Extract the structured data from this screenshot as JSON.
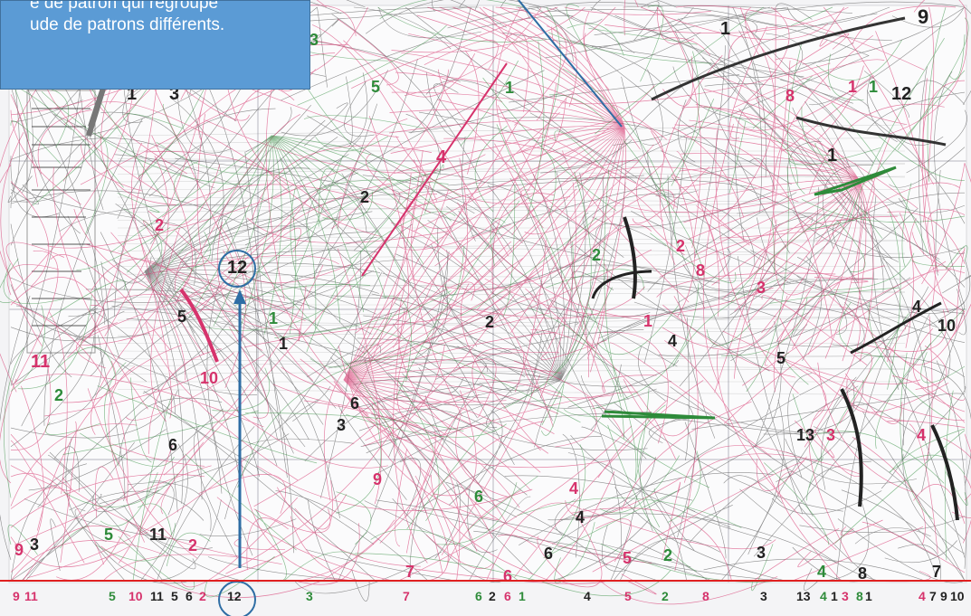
{
  "callout": {
    "line1": "e de patron qui regroupe",
    "line2": "ude de patrons différents."
  },
  "colors": {
    "pink": "#d6336c",
    "green": "#2e8b3a",
    "black": "#222222",
    "blue_annotation": "#2e6da4",
    "red_line": "#e02020",
    "callout_bg": "#5b9bd5"
  },
  "sheet_numbers": [
    {
      "id": "n1",
      "text": "9",
      "color": "black"
    },
    {
      "id": "n2",
      "text": "1",
      "color": "black"
    },
    {
      "id": "n3",
      "text": "3",
      "color": "green"
    },
    {
      "id": "n4",
      "text": "5",
      "color": "green"
    },
    {
      "id": "n5",
      "text": "1",
      "color": "green"
    },
    {
      "id": "n6",
      "text": "1",
      "color": "black"
    },
    {
      "id": "n7",
      "text": "3",
      "color": "black"
    },
    {
      "id": "n8",
      "text": "8",
      "color": "pink"
    },
    {
      "id": "n9",
      "text": "1",
      "color": "pink"
    },
    {
      "id": "n10",
      "text": "1",
      "color": "green"
    },
    {
      "id": "n11",
      "text": "12",
      "color": "black"
    },
    {
      "id": "n12",
      "text": "4",
      "color": "pink"
    },
    {
      "id": "n13",
      "text": "1",
      "color": "black"
    },
    {
      "id": "n14",
      "text": "2",
      "color": "black"
    },
    {
      "id": "n15",
      "text": "2",
      "color": "pink"
    },
    {
      "id": "n16",
      "text": "12",
      "color": "black"
    },
    {
      "id": "n17",
      "text": "2",
      "color": "green"
    },
    {
      "id": "n18",
      "text": "2",
      "color": "pink"
    },
    {
      "id": "n19",
      "text": "8",
      "color": "pink"
    },
    {
      "id": "n20",
      "text": "3",
      "color": "pink"
    },
    {
      "id": "n21",
      "text": "4",
      "color": "black"
    },
    {
      "id": "n22",
      "text": "10",
      "color": "black"
    },
    {
      "id": "n23",
      "text": "5",
      "color": "black"
    },
    {
      "id": "n24",
      "text": "1",
      "color": "green"
    },
    {
      "id": "n25",
      "text": "2",
      "color": "black"
    },
    {
      "id": "n26",
      "text": "1",
      "color": "pink"
    },
    {
      "id": "n27",
      "text": "4",
      "color": "black"
    },
    {
      "id": "n28",
      "text": "1",
      "color": "black"
    },
    {
      "id": "n29",
      "text": "5",
      "color": "black"
    },
    {
      "id": "n30",
      "text": "11",
      "color": "pink"
    },
    {
      "id": "n31",
      "text": "10",
      "color": "pink"
    },
    {
      "id": "n32",
      "text": "2",
      "color": "green"
    },
    {
      "id": "n33",
      "text": "6",
      "color": "black"
    },
    {
      "id": "n34",
      "text": "3",
      "color": "black"
    },
    {
      "id": "n35",
      "text": "13",
      "color": "black"
    },
    {
      "id": "n36",
      "text": "3",
      "color": "pink"
    },
    {
      "id": "n37",
      "text": "4",
      "color": "pink"
    },
    {
      "id": "n38",
      "text": "6",
      "color": "black"
    },
    {
      "id": "n39",
      "text": "9",
      "color": "pink"
    },
    {
      "id": "n40",
      "text": "6",
      "color": "green"
    },
    {
      "id": "n41",
      "text": "4",
      "color": "pink"
    },
    {
      "id": "n42",
      "text": "4",
      "color": "black"
    },
    {
      "id": "n43",
      "text": "9",
      "color": "pink"
    },
    {
      "id": "n44",
      "text": "3",
      "color": "black"
    },
    {
      "id": "n45",
      "text": "5",
      "color": "green"
    },
    {
      "id": "n46",
      "text": "11",
      "color": "black"
    },
    {
      "id": "n47",
      "text": "2",
      "color": "pink"
    },
    {
      "id": "n48",
      "text": "7",
      "color": "pink"
    },
    {
      "id": "n49",
      "text": "6",
      "color": "pink"
    },
    {
      "id": "n50",
      "text": "6",
      "color": "black"
    },
    {
      "id": "n51",
      "text": "5",
      "color": "pink"
    },
    {
      "id": "n52",
      "text": "2",
      "color": "green"
    },
    {
      "id": "n53",
      "text": "3",
      "color": "black"
    },
    {
      "id": "n54",
      "text": "4",
      "color": "green"
    },
    {
      "id": "n55",
      "text": "8",
      "color": "black"
    },
    {
      "id": "n56",
      "text": "7",
      "color": "black"
    }
  ],
  "bottom_numbers": [
    {
      "id": "b1",
      "text": "9",
      "color": "pink"
    },
    {
      "id": "b2",
      "text": "11",
      "color": "pink"
    },
    {
      "id": "b3",
      "text": "5",
      "color": "green"
    },
    {
      "id": "b4",
      "text": "10",
      "color": "pink"
    },
    {
      "id": "b5",
      "text": "11",
      "color": "black"
    },
    {
      "id": "b6",
      "text": "5",
      "color": "black"
    },
    {
      "id": "b7",
      "text": "6",
      "color": "black"
    },
    {
      "id": "b8",
      "text": "2",
      "color": "pink"
    },
    {
      "id": "b9",
      "text": "12",
      "color": "black"
    },
    {
      "id": "b10",
      "text": "3",
      "color": "green"
    },
    {
      "id": "b11",
      "text": "7",
      "color": "pink"
    },
    {
      "id": "b12",
      "text": "6",
      "color": "green"
    },
    {
      "id": "b13",
      "text": "2",
      "color": "black"
    },
    {
      "id": "b14",
      "text": "6",
      "color": "pink"
    },
    {
      "id": "b15",
      "text": "1",
      "color": "green"
    },
    {
      "id": "b16",
      "text": "4",
      "color": "black"
    },
    {
      "id": "b17",
      "text": "5",
      "color": "pink"
    },
    {
      "id": "b18",
      "text": "2",
      "color": "green"
    },
    {
      "id": "b19",
      "text": "8",
      "color": "pink"
    },
    {
      "id": "b20",
      "text": "3",
      "color": "black"
    },
    {
      "id": "b21",
      "text": "13",
      "color": "black"
    },
    {
      "id": "b22",
      "text": "4",
      "color": "green"
    },
    {
      "id": "b23",
      "text": "1",
      "color": "black"
    },
    {
      "id": "b24",
      "text": "3",
      "color": "pink"
    },
    {
      "id": "b25",
      "text": "8",
      "color": "green"
    },
    {
      "id": "b26",
      "text": "1",
      "color": "black"
    },
    {
      "id": "b27",
      "text": "4",
      "color": "pink"
    },
    {
      "id": "b28",
      "text": "7",
      "color": "black"
    },
    {
      "id": "b29",
      "text": "9",
      "color": "black"
    },
    {
      "id": "b30",
      "text": "10",
      "color": "black"
    }
  ]
}
